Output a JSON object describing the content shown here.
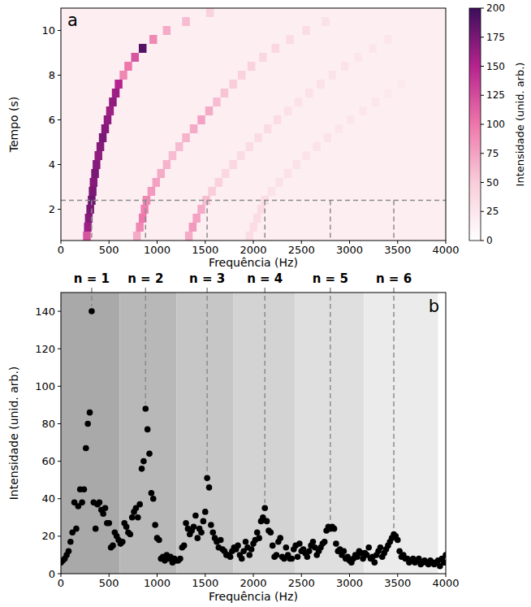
{
  "chart_data": [
    {
      "type": "heatmap",
      "panel": "a",
      "x_label": "Frequência (Hz)",
      "y_label": "Tempo (s)",
      "xlim": [
        0,
        4000
      ],
      "ylim": [
        0.6,
        11.0
      ],
      "xticks": [
        0,
        500,
        1000,
        1500,
        2000,
        2500,
        3000,
        3500,
        4000
      ],
      "yticks": [
        2,
        4,
        6,
        8,
        10
      ],
      "grid": false,
      "time_bin": 0.4,
      "freq_bin": 80,
      "slice_time": 2.4,
      "cells": [
        [
          0.8,
          270,
          120
        ],
        [
          1.2,
          280,
          160
        ],
        [
          1.6,
          290,
          170
        ],
        [
          2.0,
          305,
          175
        ],
        [
          2.4,
          320,
          180
        ],
        [
          2.8,
          330,
          175
        ],
        [
          3.2,
          340,
          170
        ],
        [
          3.6,
          355,
          175
        ],
        [
          4.0,
          370,
          170
        ],
        [
          4.4,
          390,
          165
        ],
        [
          4.8,
          410,
          170
        ],
        [
          5.2,
          435,
          175
        ],
        [
          5.6,
          460,
          170
        ],
        [
          6.0,
          485,
          165
        ],
        [
          6.4,
          510,
          160
        ],
        [
          6.8,
          540,
          165
        ],
        [
          7.2,
          570,
          160
        ],
        [
          7.6,
          600,
          150
        ],
        [
          8.0,
          650,
          90
        ],
        [
          8.4,
          700,
          100
        ],
        [
          8.8,
          770,
          120
        ],
        [
          9.2,
          850,
          190
        ],
        [
          9.6,
          960,
          90
        ],
        [
          10.0,
          1100,
          70
        ],
        [
          10.4,
          1300,
          60
        ],
        [
          10.8,
          1550,
          45
        ],
        [
          0.8,
          790,
          70
        ],
        [
          1.2,
          820,
          90
        ],
        [
          1.6,
          850,
          100
        ],
        [
          2.0,
          870,
          95
        ],
        [
          2.4,
          890,
          90
        ],
        [
          2.8,
          940,
          80
        ],
        [
          3.2,
          990,
          75
        ],
        [
          3.6,
          1040,
          70
        ],
        [
          4.0,
          1100,
          65
        ],
        [
          4.4,
          1160,
          60
        ],
        [
          4.8,
          1230,
          60
        ],
        [
          5.2,
          1300,
          65
        ],
        [
          5.6,
          1380,
          70
        ],
        [
          6.0,
          1460,
          75
        ],
        [
          6.4,
          1540,
          70
        ],
        [
          6.8,
          1620,
          60
        ],
        [
          7.2,
          1700,
          55
        ],
        [
          7.6,
          1790,
          50
        ],
        [
          8.0,
          1880,
          45
        ],
        [
          8.4,
          1980,
          45
        ],
        [
          8.8,
          2100,
          40
        ],
        [
          9.2,
          2230,
          40
        ],
        [
          9.6,
          2380,
          35
        ],
        [
          10.0,
          2550,
          35
        ],
        [
          10.4,
          2750,
          30
        ],
        [
          0.8,
          1330,
          70
        ],
        [
          1.2,
          1370,
          80
        ],
        [
          1.6,
          1410,
          75
        ],
        [
          2.0,
          1460,
          70
        ],
        [
          2.4,
          1510,
          60
        ],
        [
          2.8,
          1570,
          50
        ],
        [
          3.2,
          1640,
          45
        ],
        [
          3.6,
          1710,
          40
        ],
        [
          4.0,
          1790,
          40
        ],
        [
          4.4,
          1870,
          35
        ],
        [
          4.8,
          1960,
          35
        ],
        [
          5.2,
          2050,
          35
        ],
        [
          5.6,
          2150,
          35
        ],
        [
          6.0,
          2250,
          35
        ],
        [
          6.4,
          2360,
          30
        ],
        [
          6.8,
          2470,
          30
        ],
        [
          7.2,
          2580,
          30
        ],
        [
          7.6,
          2700,
          30
        ],
        [
          8.0,
          2820,
          28
        ],
        [
          8.4,
          2950,
          28
        ],
        [
          8.8,
          3090,
          25
        ],
        [
          9.2,
          3240,
          25
        ],
        [
          9.6,
          3400,
          25
        ],
        [
          0.8,
          1960,
          35
        ],
        [
          1.2,
          2000,
          35
        ],
        [
          1.6,
          2040,
          35
        ],
        [
          2.0,
          2080,
          35
        ],
        [
          2.4,
          2120,
          35
        ],
        [
          2.8,
          2190,
          30
        ],
        [
          3.2,
          2270,
          30
        ],
        [
          3.6,
          2360,
          30
        ],
        [
          4.0,
          2450,
          30
        ],
        [
          4.4,
          2550,
          28
        ],
        [
          4.8,
          2660,
          28
        ],
        [
          5.2,
          2770,
          28
        ],
        [
          5.6,
          2890,
          25
        ],
        [
          6.0,
          3010,
          25
        ],
        [
          6.4,
          3140,
          25
        ],
        [
          6.8,
          3270,
          25
        ],
        [
          7.2,
          3400,
          22
        ],
        [
          7.6,
          3540,
          22
        ]
      ],
      "colorbar": {
        "label": "Intensidade (unid. arb.)",
        "range": [
          0,
          200
        ],
        "ticks": [
          0,
          25,
          50,
          75,
          100,
          125,
          150,
          175,
          200
        ],
        "colors": [
          "#ffffff",
          "#f9cdda",
          "#ee77ab",
          "#b5238e",
          "#3c0d5c"
        ]
      }
    },
    {
      "type": "scatter",
      "panel": "b",
      "x_label": "Frequência (Hz)",
      "y_label": "Intensidade (unid. arb.)",
      "xlim": [
        0,
        4000
      ],
      "ylim": [
        0,
        150
      ],
      "xticks": [
        0,
        500,
        1000,
        1500,
        2000,
        2500,
        3000,
        3500,
        4000
      ],
      "yticks": [
        0,
        20,
        40,
        60,
        80,
        100,
        120,
        140
      ],
      "grid": false,
      "color": "#000000",
      "marker": "circle",
      "x": [
        0,
        20,
        40,
        60,
        80,
        100,
        120,
        140,
        160,
        180,
        200,
        220,
        240,
        260,
        280,
        300,
        320,
        340,
        360,
        380,
        400,
        420,
        440,
        460,
        480,
        500,
        520,
        540,
        560,
        580,
        600,
        620,
        640,
        660,
        680,
        700,
        720,
        740,
        760,
        780,
        800,
        820,
        840,
        860,
        880,
        900,
        920,
        940,
        960,
        980,
        1000,
        1020,
        1040,
        1060,
        1080,
        1100,
        1120,
        1140,
        1160,
        1180,
        1200,
        1220,
        1240,
        1260,
        1280,
        1300,
        1320,
        1340,
        1360,
        1380,
        1400,
        1420,
        1440,
        1460,
        1480,
        1500,
        1520,
        1540,
        1560,
        1580,
        1600,
        1620,
        1640,
        1660,
        1680,
        1700,
        1720,
        1740,
        1760,
        1780,
        1800,
        1820,
        1840,
        1860,
        1880,
        1900,
        1920,
        1940,
        1960,
        1980,
        2000,
        2020,
        2040,
        2060,
        2080,
        2100,
        2120,
        2140,
        2160,
        2180,
        2200,
        2220,
        2240,
        2260,
        2280,
        2300,
        2320,
        2340,
        2360,
        2380,
        2400,
        2420,
        2440,
        2460,
        2480,
        2500,
        2520,
        2540,
        2560,
        2580,
        2600,
        2620,
        2640,
        2660,
        2680,
        2700,
        2720,
        2740,
        2760,
        2780,
        2800,
        2820,
        2840,
        2860,
        2880,
        2900,
        2920,
        2940,
        2960,
        2980,
        3000,
        3020,
        3040,
        3060,
        3080,
        3100,
        3120,
        3140,
        3160,
        3180,
        3200,
        3220,
        3240,
        3260,
        3280,
        3300,
        3320,
        3340,
        3360,
        3380,
        3400,
        3420,
        3440,
        3460,
        3480,
        3500,
        3520,
        3540,
        3560,
        3580,
        3600,
        3620,
        3640,
        3660,
        3680,
        3700,
        3720,
        3740,
        3760,
        3780,
        3800,
        3820,
        3840,
        3860,
        3880,
        3900,
        3920,
        3940,
        3960,
        3980,
        4000
      ],
      "values": [
        6,
        7,
        8,
        10,
        12,
        17,
        22,
        38,
        24,
        36,
        45,
        38,
        45,
        67,
        80,
        86,
        140,
        38,
        24,
        37,
        38,
        34,
        32,
        35,
        27,
        27,
        14,
        15,
        22,
        20,
        18,
        16,
        17,
        27,
        25,
        22,
        21,
        30,
        33,
        35,
        30,
        37,
        56,
        60,
        88,
        77,
        64,
        43,
        40,
        26,
        19,
        18,
        8,
        9,
        7,
        10,
        8,
        9,
        6,
        8,
        7,
        7,
        8,
        14,
        15,
        27,
        24,
        21,
        23,
        25,
        31,
        19,
        24,
        22,
        28,
        33,
        51,
        46,
        26,
        22,
        19,
        17,
        14,
        18,
        13,
        12,
        10,
        10,
        9,
        12,
        14,
        13,
        15,
        10,
        8,
        12,
        17,
        14,
        10,
        13,
        16,
        18,
        22,
        19,
        28,
        30,
        35,
        28,
        23,
        22,
        15,
        9,
        10,
        17,
        19,
        9,
        8,
        14,
        10,
        8,
        8,
        13,
        15,
        9,
        16,
        12,
        13,
        11,
        9,
        12,
        15,
        17,
        14,
        10,
        12,
        14,
        16,
        17,
        23,
        25,
        24,
        25,
        24,
        16,
        12,
        13,
        10,
        12,
        8,
        9,
        7,
        6,
        8,
        10,
        9,
        12,
        11,
        8,
        11,
        10,
        14,
        8,
        9,
        6,
        10,
        12,
        14,
        9,
        11,
        13,
        15,
        17,
        19,
        21,
        20,
        18,
        12,
        9,
        10,
        8,
        8,
        6,
        7,
        8,
        6,
        7,
        8,
        5,
        6,
        7,
        6,
        5,
        7,
        6,
        5,
        6,
        7,
        4,
        8,
        6,
        10
      ],
      "bands": [
        {
          "name": "n = 1",
          "range": [
            0,
            610
          ],
          "color": "#a9a9a9",
          "frequency": 320,
          "peak": 140
        },
        {
          "name": "n = 2",
          "range": [
            610,
            1200
          ],
          "color": "#b8b8b8",
          "frequency": 880,
          "peak": 88
        },
        {
          "name": "n = 3",
          "range": [
            1200,
            1790
          ],
          "color": "#c6c6c6",
          "frequency": 1520,
          "peak": 51
        },
        {
          "name": "n = 4",
          "range": [
            1790,
            2430
          ],
          "color": "#d3d3d3",
          "frequency": 2120,
          "peak": 35
        },
        {
          "name": "n = 5",
          "range": [
            2430,
            3150
          ],
          "color": "#dfdfdf",
          "frequency": 2800,
          "peak": 25
        },
        {
          "name": "n = 6",
          "range": [
            3150,
            3920
          ],
          "color": "#ebebeb",
          "frequency": 3460,
          "peak": 21
        }
      ]
    }
  ]
}
